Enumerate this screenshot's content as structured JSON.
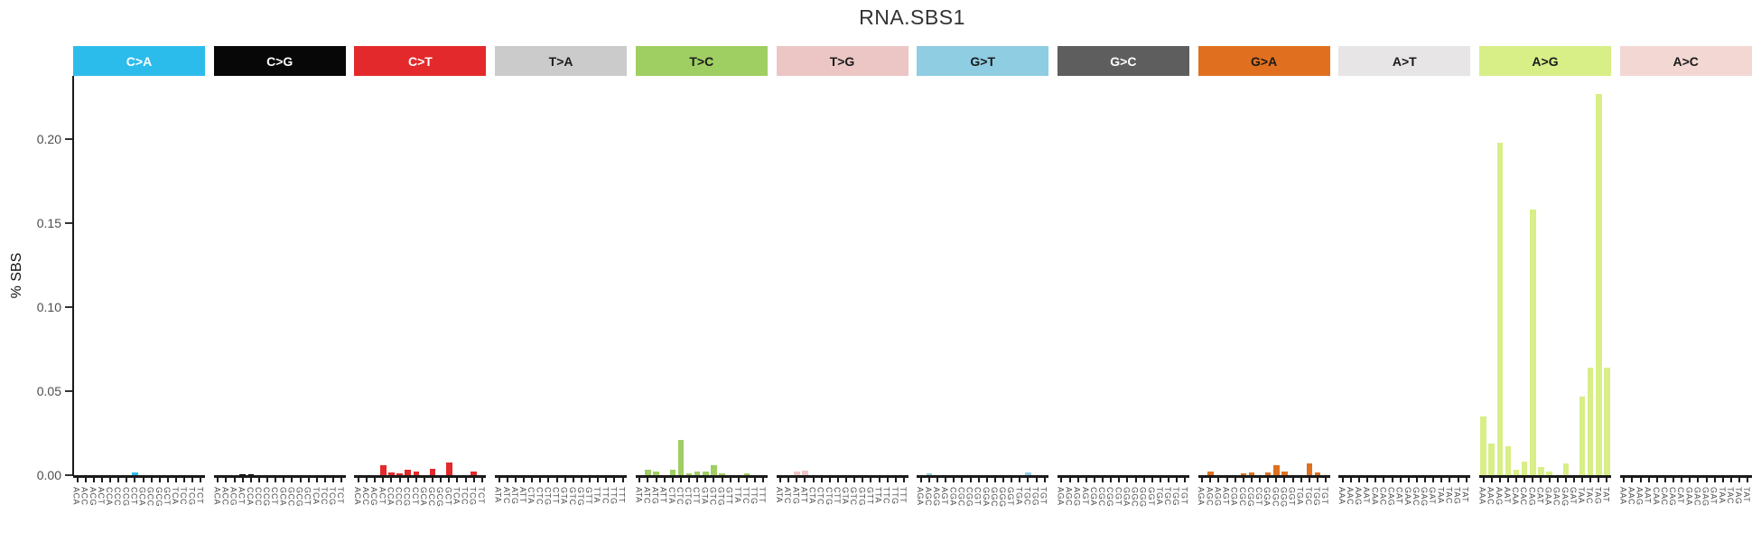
{
  "title": "RNA.SBS1",
  "y_axis": {
    "label": "% SBS",
    "ticks": [
      {
        "text": "0.00",
        "value": 0.0
      },
      {
        "text": "0.05",
        "value": 0.05
      },
      {
        "text": "0.10",
        "value": 0.1
      },
      {
        "text": "0.15",
        "value": 0.15
      },
      {
        "text": "0.20",
        "value": 0.2
      }
    ]
  },
  "chart_data": {
    "type": "bar",
    "title": "RNA.SBS1",
    "xlabel": "",
    "ylabel": "% SBS",
    "ylim": [
      0,
      0.2375
    ],
    "grid": false,
    "legend": "none",
    "panels": [
      {
        "label": "C>A",
        "color": "#2CBCEB",
        "label_color": "#ffffff",
        "categories": [
          "ACA",
          "ACC",
          "ACG",
          "ACT",
          "CCA",
          "CCC",
          "CCG",
          "CCT",
          "GCA",
          "GCC",
          "GCG",
          "GCT",
          "TCA",
          "TCC",
          "TCG",
          "TCT"
        ],
        "values": [
          0,
          0,
          0,
          0,
          0,
          0,
          0,
          0.0015,
          0,
          0,
          0,
          0,
          0,
          0,
          0,
          0
        ]
      },
      {
        "label": "C>G",
        "color": "#070707",
        "label_color": "#ffffff",
        "categories": [
          "ACA",
          "ACC",
          "ACG",
          "ACT",
          "CCA",
          "CCC",
          "CCG",
          "CCT",
          "GCA",
          "GCC",
          "GCG",
          "GCT",
          "TCA",
          "TCC",
          "TCG",
          "TCT"
        ],
        "values": [
          0,
          0,
          0,
          0.0008,
          0.0005,
          0,
          0,
          0,
          0,
          0,
          0,
          0,
          0,
          0,
          0,
          0
        ]
      },
      {
        "label": "C>T",
        "color": "#E3292B",
        "label_color": "#ffffff",
        "categories": [
          "ACA",
          "ACC",
          "ACG",
          "ACT",
          "CCA",
          "CCC",
          "CCG",
          "CCT",
          "GCA",
          "GCC",
          "GCG",
          "GCT",
          "TCA",
          "TCC",
          "TCG",
          "TCT"
        ],
        "values": [
          0,
          0,
          0,
          0.006,
          0.0015,
          0.001,
          0.0035,
          0.002,
          0,
          0.004,
          0,
          0.0075,
          0,
          0,
          0.002,
          0
        ]
      },
      {
        "label": "T>A",
        "color": "#CBCBCB",
        "label_color": "#1a1a1a",
        "categories": [
          "ATA",
          "ATC",
          "ATG",
          "ATT",
          "CTA",
          "CTC",
          "CTG",
          "CTT",
          "GTA",
          "GTC",
          "GTG",
          "GTT",
          "TTA",
          "TTC",
          "TTG",
          "TTT"
        ],
        "values": [
          0,
          0,
          0,
          0,
          0,
          0,
          0,
          0,
          0,
          0,
          0,
          0,
          0,
          0,
          0,
          0
        ]
      },
      {
        "label": "T>C",
        "color": "#9FCE62",
        "label_color": "#1a1a1a",
        "categories": [
          "ATA",
          "ATC",
          "ATG",
          "ATT",
          "CTA",
          "CTC",
          "CTG",
          "CTT",
          "GTA",
          "GTC",
          "GTG",
          "GTT",
          "TTA",
          "TTC",
          "TTG",
          "TTT"
        ],
        "values": [
          0,
          0.003,
          0.002,
          0,
          0.003,
          0.021,
          0.001,
          0.002,
          0.002,
          0.006,
          0.001,
          0,
          0,
          0.001,
          0,
          0
        ]
      },
      {
        "label": "T>G",
        "color": "#EBC6C4",
        "label_color": "#1a1a1a",
        "categories": [
          "ATA",
          "ATC",
          "ATG",
          "ATT",
          "CTA",
          "CTC",
          "CTG",
          "CTT",
          "GTA",
          "GTC",
          "GTG",
          "GTT",
          "TTA",
          "TTC",
          "TTG",
          "TTT"
        ],
        "values": [
          0,
          0,
          0.002,
          0.0025,
          0,
          0,
          0,
          0,
          0,
          0,
          0,
          0,
          0,
          0,
          0,
          0
        ]
      },
      {
        "label": "G>T",
        "color": "#8ECDE2",
        "label_color": "#1a1a1a",
        "categories": [
          "AGA",
          "AGC",
          "AGG",
          "AGT",
          "CGA",
          "CGC",
          "CGG",
          "CGT",
          "GGA",
          "GGC",
          "GGG",
          "GGT",
          "TGA",
          "TGC",
          "TGG",
          "TGT"
        ],
        "values": [
          0,
          0.001,
          0,
          0,
          0,
          0,
          0,
          0,
          0,
          0,
          0,
          0,
          0,
          0.0015,
          0,
          0
        ]
      },
      {
        "label": "G>C",
        "color": "#5E5E5E",
        "label_color": "#ffffff",
        "categories": [
          "AGA",
          "AGC",
          "AGG",
          "AGT",
          "CGA",
          "CGC",
          "CGG",
          "CGT",
          "GGA",
          "GGC",
          "GGG",
          "GGT",
          "TGA",
          "TGC",
          "TGG",
          "TGT"
        ],
        "values": [
          0,
          0,
          0,
          0,
          0,
          0,
          0,
          0,
          0,
          0,
          0,
          0,
          0,
          0,
          0,
          0
        ]
      },
      {
        "label": "G>A",
        "color": "#E0701F",
        "label_color": "#1a1a1a",
        "categories": [
          "AGA",
          "AGC",
          "AGG",
          "AGT",
          "CGA",
          "CGC",
          "CGG",
          "CGT",
          "GGA",
          "GGC",
          "GGG",
          "GGT",
          "TGA",
          "TGC",
          "TGG",
          "TGT"
        ],
        "values": [
          0,
          0.002,
          0,
          0,
          0,
          0.0013,
          0.0015,
          0,
          0.0015,
          0.006,
          0.002,
          0,
          0,
          0.007,
          0.0015,
          0
        ]
      },
      {
        "label": "A>T",
        "color": "#E7E5E5",
        "label_color": "#1a1a1a",
        "categories": [
          "AAA",
          "AAC",
          "AAG",
          "AAT",
          "CAA",
          "CAC",
          "CAG",
          "CAT",
          "GAA",
          "GAC",
          "GAG",
          "GAT",
          "TAA",
          "TAC",
          "TAG",
          "TAT"
        ],
        "values": [
          0,
          0,
          0,
          0,
          0,
          0,
          0,
          0,
          0,
          0,
          0,
          0,
          0,
          0,
          0,
          0
        ]
      },
      {
        "label": "A>G",
        "color": "#D8EE87",
        "label_color": "#1a1a1a",
        "categories": [
          "AAA",
          "AAC",
          "AAG",
          "AAT",
          "CAA",
          "CAC",
          "CAG",
          "CAT",
          "GAA",
          "GAC",
          "GAG",
          "GAT",
          "TAA",
          "TAC",
          "TAG",
          "TAT"
        ],
        "values": [
          0.035,
          0.019,
          0.198,
          0.017,
          0.003,
          0.008,
          0.158,
          0.005,
          0.002,
          0,
          0.007,
          0,
          0.047,
          0.064,
          0.227,
          0.064
        ]
      },
      {
        "label": "A>C",
        "color": "#F2D7D3",
        "label_color": "#1a1a1a",
        "categories": [
          "AAA",
          "AAC",
          "AAG",
          "AAT",
          "CAA",
          "CAC",
          "CAG",
          "CAT",
          "GAA",
          "GAC",
          "GAG",
          "GAT",
          "TAA",
          "TAC",
          "TAG",
          "TAT"
        ],
        "values": [
          0,
          0,
          0,
          0,
          0,
          0,
          0,
          0,
          0,
          0,
          0,
          0,
          0,
          0,
          0,
          0
        ]
      }
    ]
  }
}
